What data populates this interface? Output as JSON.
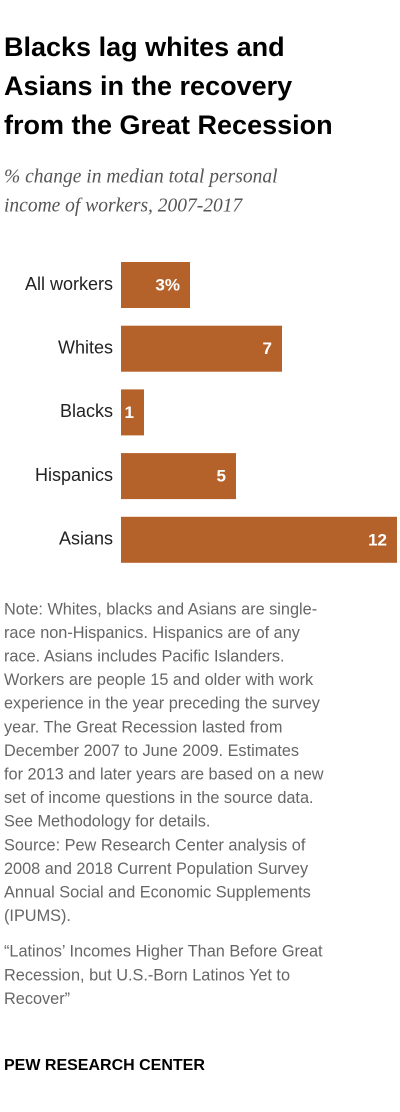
{
  "chart_data": {
    "type": "bar",
    "orientation": "horizontal",
    "title_lines": [
      "Blacks lag whites and",
      "Asians in the recovery",
      "from the Great Recession"
    ],
    "subtitle_lines": [
      "% change in median total personal",
      "income of workers, 2007-2017"
    ],
    "categories": [
      "All workers",
      "Whites",
      "Blacks",
      "Hispanics",
      "Asians"
    ],
    "values": [
      3,
      7,
      1,
      5,
      12
    ],
    "value_labels": [
      "3%",
      "7",
      "1",
      "5",
      "12"
    ],
    "color": "#b5612a",
    "note_lines": [
      "Note: Whites, blacks and Asians are single-",
      "race non-Hispanics. Hispanics are of any",
      "race. Asians includes Pacific Islanders.",
      "Workers are people 15 and older with work",
      "experience in the year preceding the survey",
      "year. The Great Recession lasted from",
      "December 2007 to June 2009. Estimates",
      "for 2013 and later years are based on a new",
      "set of income questions in the source data.",
      "See Methodology for details."
    ],
    "source_lines": [
      "Source: Pew Research Center analysis of",
      "2008 and 2018 Current Population Survey",
      "Annual Social and Economic Supplements",
      "(IPUMS)."
    ],
    "citation_lines": [
      "“Latinos’ Incomes Higher Than Before Great",
      "Recession, but U.S.-Born Latinos Yet to",
      "Recover”"
    ],
    "footer": "PEW RESEARCH CENTER"
  }
}
